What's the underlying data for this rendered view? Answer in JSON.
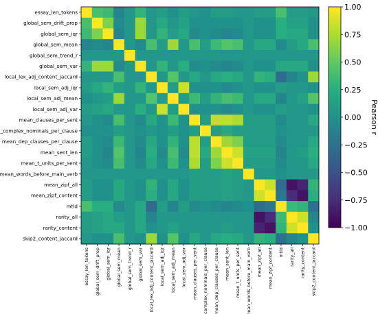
{
  "chart_data": {
    "type": "heatmap",
    "title": "",
    "colorbar": {
      "label": "Pearson r",
      "range": [
        -1.0,
        1.0
      ],
      "ticks": [
        "1.00",
        "0.75",
        "0.50",
        "0.25",
        "0.00",
        "−0.25",
        "−0.50",
        "−0.75",
        "−1.00"
      ],
      "tick_values": [
        1.0,
        0.75,
        0.5,
        0.25,
        0.0,
        -0.25,
        -0.5,
        -0.75,
        -1.0
      ],
      "colormap": "viridis"
    },
    "variables": [
      "essay_len_tokens",
      "global_sem_drift_prop",
      "global_sem_iqr",
      "global_sem_mean",
      "global_sem_trend_r",
      "global_sem_var",
      "local_lex_adj_content_jaccard",
      "local_sem_adj_iqr",
      "local_sem_adj_mean",
      "local_sem_adj_var",
      "mean_clauses_per_sent",
      "mean_complex_nominals_per_clause",
      "mean_dep_clauses_per_clause",
      "mean_sent_len",
      "mean_t_units_per_sent",
      "mean_words_before_main_verb",
      "mean_zipf_all",
      "mean_zipf_content",
      "mtld",
      "rarity_all",
      "rarity_content",
      "skip2_content_jaccard"
    ],
    "matrix": [
      [
        1.0,
        0.4,
        0.35,
        -0.1,
        0.05,
        0.3,
        0.05,
        0.1,
        0.0,
        0.1,
        0.05,
        0.0,
        0.1,
        0.1,
        0.05,
        0.05,
        0.1,
        0.1,
        0.4,
        0.1,
        0.1,
        0.05
      ],
      [
        0.4,
        1.0,
        0.6,
        -0.05,
        0.05,
        0.7,
        0.05,
        0.2,
        0.05,
        0.15,
        0.0,
        0.0,
        0.0,
        0.0,
        0.0,
        0.05,
        0.0,
        0.0,
        0.25,
        0.15,
        0.15,
        0.0
      ],
      [
        0.35,
        0.6,
        1.0,
        -0.1,
        0.05,
        0.7,
        0.05,
        0.3,
        0.1,
        0.2,
        -0.05,
        0.0,
        -0.05,
        -0.1,
        -0.05,
        0.05,
        0.0,
        0.0,
        0.25,
        0.2,
        0.2,
        0.0
      ],
      [
        -0.1,
        -0.05,
        -0.1,
        1.0,
        0.05,
        -0.05,
        0.4,
        0.1,
        0.7,
        0.05,
        0.4,
        0.1,
        0.35,
        0.45,
        0.4,
        0.05,
        0.2,
        0.2,
        -0.05,
        0.1,
        0.2,
        0.4
      ],
      [
        0.05,
        0.05,
        0.05,
        0.05,
        1.0,
        0.05,
        0.05,
        0.05,
        0.05,
        0.05,
        0.05,
        0.05,
        0.05,
        0.05,
        0.05,
        0.05,
        0.05,
        0.05,
        0.05,
        0.05,
        0.05,
        0.05
      ],
      [
        0.3,
        0.7,
        0.7,
        -0.05,
        0.05,
        1.0,
        0.05,
        0.3,
        0.05,
        0.25,
        -0.05,
        0.0,
        -0.05,
        -0.1,
        -0.05,
        0.05,
        0.0,
        0.0,
        0.2,
        0.2,
        0.2,
        0.0
      ],
      [
        0.05,
        0.05,
        0.05,
        0.4,
        0.05,
        0.05,
        1.0,
        0.05,
        0.45,
        0.05,
        0.2,
        0.05,
        0.2,
        0.25,
        0.2,
        0.05,
        0.3,
        0.25,
        -0.3,
        -0.1,
        0.0,
        0.7
      ],
      [
        0.1,
        0.2,
        0.3,
        0.1,
        0.05,
        0.3,
        0.05,
        1.0,
        0.1,
        0.85,
        0.0,
        0.0,
        0.0,
        -0.05,
        0.0,
        0.05,
        0.0,
        0.0,
        0.1,
        0.05,
        0.05,
        0.0
      ],
      [
        0.0,
        0.05,
        0.1,
        0.7,
        0.05,
        0.05,
        0.45,
        0.1,
        1.0,
        0.1,
        0.35,
        0.1,
        0.3,
        0.4,
        0.35,
        0.05,
        0.2,
        0.2,
        -0.1,
        0.05,
        0.15,
        0.45
      ],
      [
        0.1,
        0.15,
        0.2,
        0.05,
        0.05,
        0.25,
        0.05,
        0.85,
        0.1,
        1.0,
        0.0,
        0.0,
        0.0,
        -0.05,
        0.0,
        0.05,
        0.0,
        0.0,
        0.1,
        0.05,
        0.05,
        0.0
      ],
      [
        0.05,
        0.0,
        -0.05,
        0.4,
        0.05,
        -0.05,
        0.2,
        0.0,
        0.35,
        0.0,
        1.0,
        0.1,
        0.8,
        0.8,
        0.75,
        0.1,
        0.1,
        0.1,
        -0.05,
        0.05,
        0.05,
        0.2
      ],
      [
        0.0,
        0.0,
        0.0,
        0.1,
        0.05,
        0.0,
        0.05,
        0.0,
        0.1,
        0.0,
        0.1,
        1.0,
        0.1,
        0.2,
        0.1,
        0.1,
        0.1,
        0.1,
        0.0,
        0.05,
        0.05,
        0.05
      ],
      [
        0.1,
        0.0,
        -0.05,
        0.35,
        0.05,
        -0.05,
        0.2,
        0.0,
        0.3,
        0.0,
        0.8,
        0.1,
        1.0,
        0.7,
        0.6,
        0.1,
        0.1,
        0.1,
        -0.05,
        0.05,
        0.05,
        0.2
      ],
      [
        0.1,
        0.0,
        -0.1,
        0.45,
        0.05,
        -0.1,
        0.25,
        -0.05,
        0.4,
        -0.05,
        0.8,
        0.2,
        0.7,
        1.0,
        0.85,
        0.15,
        0.15,
        0.15,
        -0.1,
        0.05,
        0.1,
        0.25
      ],
      [
        0.05,
        0.0,
        -0.05,
        0.4,
        0.05,
        -0.05,
        0.2,
        0.0,
        0.35,
        0.0,
        0.75,
        0.1,
        0.6,
        0.85,
        1.0,
        0.1,
        0.1,
        0.1,
        -0.05,
        0.05,
        0.05,
        0.2
      ],
      [
        0.05,
        0.05,
        0.05,
        0.05,
        0.05,
        0.05,
        0.05,
        0.05,
        0.05,
        0.05,
        0.1,
        0.1,
        0.1,
        0.15,
        0.1,
        1.0,
        0.05,
        0.05,
        0.0,
        0.05,
        0.05,
        0.05
      ],
      [
        0.1,
        0.0,
        0.0,
        0.2,
        0.05,
        0.0,
        0.3,
        0.0,
        0.2,
        0.0,
        0.1,
        0.1,
        0.1,
        0.15,
        0.1,
        0.05,
        1.0,
        0.85,
        -0.3,
        -0.9,
        -0.8,
        0.3
      ],
      [
        0.1,
        0.0,
        0.0,
        0.2,
        0.05,
        0.0,
        0.25,
        0.0,
        0.2,
        0.0,
        0.1,
        0.1,
        0.1,
        0.15,
        0.1,
        0.05,
        0.85,
        1.0,
        -0.2,
        -0.75,
        -0.9,
        0.25
      ],
      [
        0.4,
        0.25,
        0.25,
        -0.05,
        0.05,
        0.2,
        -0.3,
        0.1,
        -0.1,
        0.1,
        -0.05,
        0.0,
        -0.05,
        -0.1,
        -0.05,
        0.0,
        -0.3,
        -0.2,
        1.0,
        0.35,
        0.3,
        -0.25
      ],
      [
        0.1,
        0.15,
        0.2,
        0.1,
        0.05,
        0.2,
        -0.1,
        0.05,
        0.05,
        0.05,
        0.05,
        0.05,
        0.05,
        0.05,
        0.05,
        0.05,
        -0.9,
        -0.75,
        0.35,
        1.0,
        0.85,
        -0.1
      ],
      [
        0.1,
        0.15,
        0.2,
        0.2,
        0.05,
        0.2,
        0.0,
        0.05,
        0.15,
        0.05,
        0.05,
        0.05,
        0.05,
        0.1,
        0.05,
        0.05,
        -0.8,
        -0.9,
        0.3,
        0.85,
        1.0,
        0.0
      ],
      [
        0.05,
        0.0,
        0.0,
        0.4,
        0.05,
        0.0,
        0.7,
        0.0,
        0.45,
        0.0,
        0.2,
        0.05,
        0.2,
        0.25,
        0.2,
        0.05,
        0.3,
        0.25,
        -0.25,
        -0.1,
        0.0,
        1.0
      ]
    ]
  }
}
